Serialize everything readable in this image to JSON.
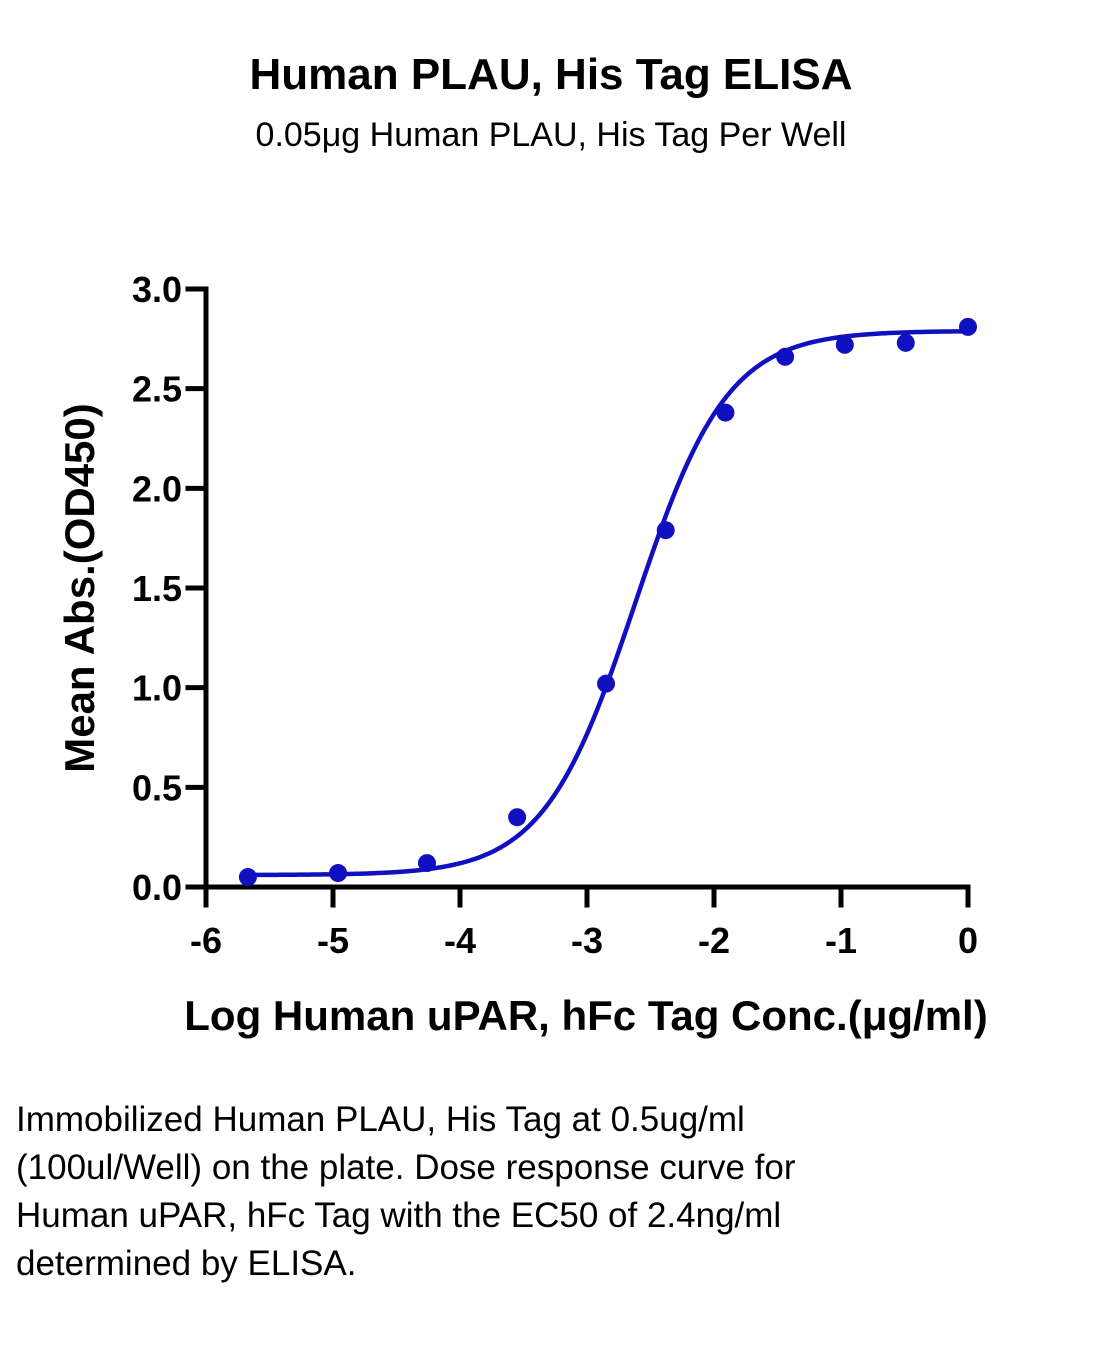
{
  "chart_data": {
    "type": "scatter",
    "title": "Human PLAU, His Tag ELISA",
    "subtitle": "0.05μg Human PLAU, His Tag Per Well",
    "xlabel": "Log Human uPAR, hFc Tag Conc.(μg/ml)",
    "ylabel": "Mean Abs.(OD450)",
    "xlim": [
      -6,
      0
    ],
    "ylim": [
      0,
      3
    ],
    "xticks": [
      -6,
      -5,
      -4,
      -3,
      -2,
      -1,
      0
    ],
    "xtick_labels": [
      "-6",
      "-5",
      "-4",
      "-3",
      "-2",
      "-1",
      "0"
    ],
    "yticks": [
      0,
      0.5,
      1,
      1.5,
      2,
      2.5,
      3
    ],
    "ytick_labels": [
      "0.0",
      "0.5",
      "1.0",
      "1.5",
      "2.0",
      "2.5",
      "3.0"
    ],
    "grid": false,
    "series": [
      {
        "color": "#1010c0",
        "points": [
          {
            "x": -5.67,
            "y": 0.05
          },
          {
            "x": -4.96,
            "y": 0.07
          },
          {
            "x": -4.26,
            "y": 0.12
          },
          {
            "x": -3.55,
            "y": 0.35
          },
          {
            "x": -2.85,
            "y": 1.02
          },
          {
            "x": -2.38,
            "y": 1.79
          },
          {
            "x": -1.91,
            "y": 2.38
          },
          {
            "x": -1.44,
            "y": 2.66
          },
          {
            "x": -0.97,
            "y": 2.72
          },
          {
            "x": -0.49,
            "y": 2.73
          },
          {
            "x": 0.0,
            "y": 2.81
          }
        ],
        "fit": {
          "model": "4PL",
          "bottom": 0.06,
          "top": 2.79,
          "log_ec50": -2.62,
          "hill_slope": 1.2
        }
      }
    ]
  },
  "caption": "Immobilized Human PLAU, His Tag at 0.5ug/ml (100ul/Well) on the plate. Dose response curve for Human uPAR, hFc Tag with the EC50 of 2.4ng/ml determined by ELISA."
}
